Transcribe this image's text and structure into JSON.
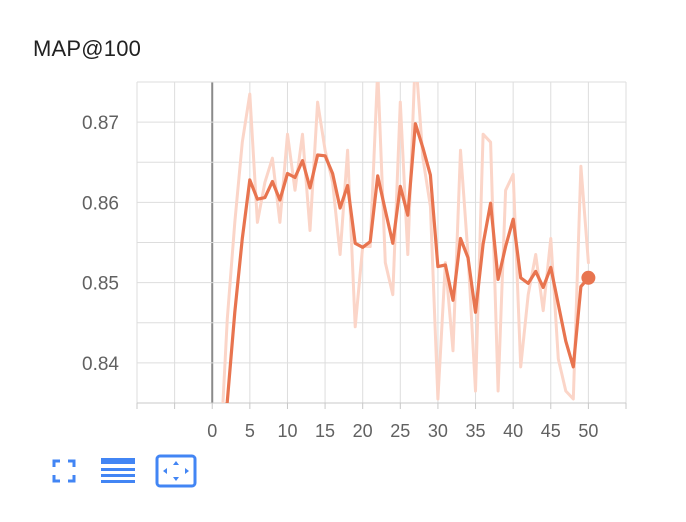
{
  "chart_data": {
    "type": "line",
    "title": "MAP@100",
    "xlabel": "",
    "ylabel": "",
    "xlim": [
      -10,
      55
    ],
    "ylim": [
      0.835,
      0.875
    ],
    "x_ticks": [
      0,
      5,
      10,
      15,
      20,
      25,
      30,
      35,
      40,
      45,
      50
    ],
    "y_ticks": [
      0.84,
      0.85,
      0.86,
      0.87
    ],
    "y_tick_labels": [
      "0.84",
      "0.85",
      "0.86",
      "0.87"
    ],
    "grid": true,
    "series": [
      {
        "role": "raw",
        "color": "#fbd5c8",
        "x": [
          1,
          2,
          3,
          4,
          5,
          6,
          7,
          8,
          9,
          10,
          11,
          12,
          13,
          14,
          15,
          16,
          17,
          18,
          19,
          20,
          21,
          22,
          23,
          24,
          25,
          26,
          27,
          28,
          29,
          30,
          31,
          32,
          33,
          34,
          35,
          36,
          37,
          38,
          39,
          40,
          41,
          42,
          43,
          44,
          45,
          46,
          47,
          48,
          49,
          50
        ],
        "values": [
          0.8275,
          0.8455,
          0.8575,
          0.8675,
          0.8735,
          0.8575,
          0.8625,
          0.8655,
          0.8575,
          0.8685,
          0.8615,
          0.8685,
          0.8565,
          0.8725,
          0.8665,
          0.8625,
          0.8535,
          0.8665,
          0.8445,
          0.8545,
          0.8545,
          0.8765,
          0.8525,
          0.8485,
          0.8725,
          0.8535,
          0.8785,
          0.8655,
          0.8595,
          0.8355,
          0.8525,
          0.8415,
          0.8665,
          0.8535,
          0.8365,
          0.8685,
          0.8675,
          0.8365,
          0.8615,
          0.8635,
          0.8395,
          0.8485,
          0.8535,
          0.8465,
          0.8555,
          0.8405,
          0.8365,
          0.8355,
          0.8645,
          0.8525
        ]
      },
      {
        "role": "smoothed",
        "color": "#e8744f",
        "x": [
          1,
          2,
          3,
          4,
          5,
          6,
          7,
          8,
          9,
          10,
          11,
          12,
          13,
          14,
          15,
          16,
          17,
          18,
          19,
          20,
          21,
          22,
          23,
          24,
          25,
          26,
          27,
          28,
          29,
          30,
          31,
          32,
          33,
          34,
          35,
          36,
          37,
          38,
          39,
          40,
          41,
          42,
          43,
          44,
          45,
          46,
          47,
          48,
          49,
          50
        ],
        "values": [
          0.8275,
          0.8352,
          0.8463,
          0.8555,
          0.8628,
          0.8604,
          0.8606,
          0.8626,
          0.8603,
          0.8636,
          0.8631,
          0.8652,
          0.8618,
          0.8659,
          0.8658,
          0.8636,
          0.8593,
          0.8621,
          0.8549,
          0.8544,
          0.8551,
          0.8633,
          0.859,
          0.8549,
          0.862,
          0.8584,
          0.8698,
          0.8668,
          0.8634,
          0.852,
          0.8522,
          0.8478,
          0.8555,
          0.8531,
          0.8463,
          0.8548,
          0.8599,
          0.8504,
          0.8545,
          0.8579,
          0.8506,
          0.8499,
          0.8514,
          0.8494,
          0.8519,
          0.8473,
          0.8427,
          0.8395,
          0.8495,
          0.8506
        ]
      }
    ],
    "last_point": {
      "x": 50,
      "value": 0.8506
    }
  },
  "toolbar": {
    "icons": [
      "fullscreen-icon",
      "data-table-icon",
      "fit-domain-icon"
    ],
    "accent": "#4285f4"
  }
}
